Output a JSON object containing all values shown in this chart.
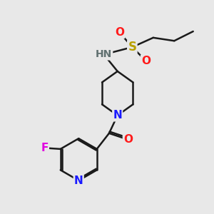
{
  "bg_color": "#e8e8e8",
  "bond_color": "#1a1a1a",
  "N_color": "#1a1aff",
  "O_color": "#ff1a1a",
  "S_color": "#b8a000",
  "F_color": "#e000e0",
  "H_color": "#607070",
  "line_width": 1.8,
  "font_size": 11,
  "xlim": [
    0,
    10
  ],
  "ylim": [
    0,
    10
  ]
}
